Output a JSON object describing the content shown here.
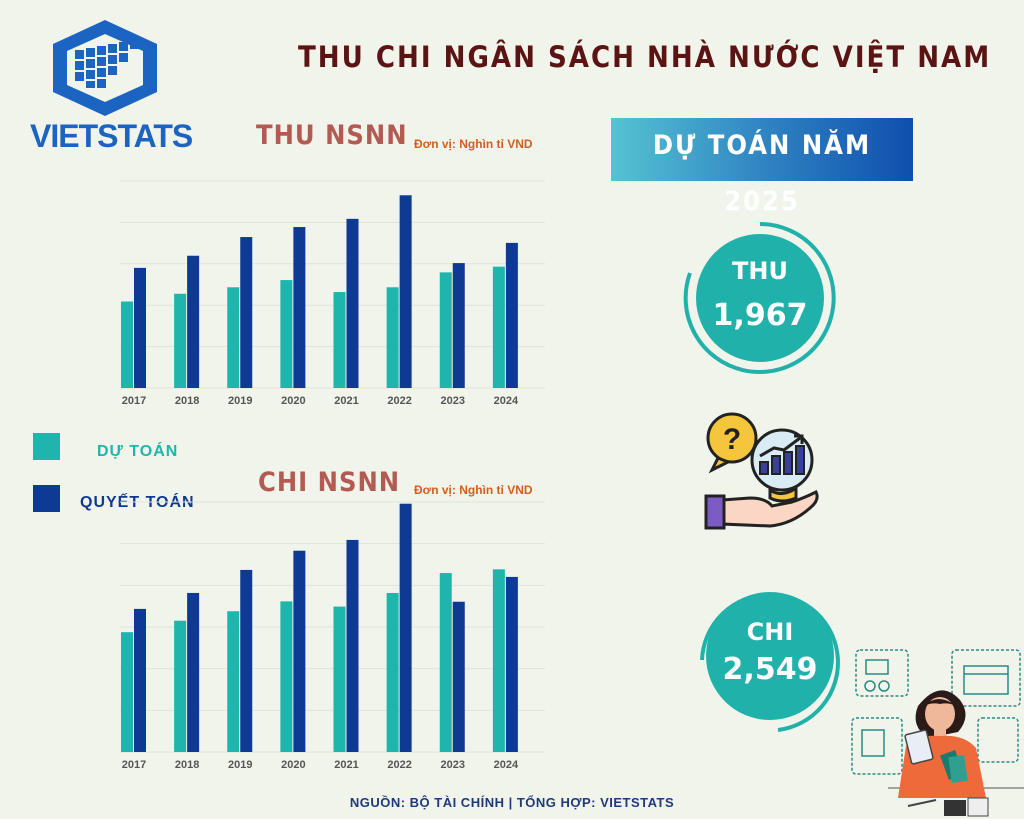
{
  "title": "THU CHI NGÂN SÁCH NHÀ NƯỚC VIỆT NAM",
  "logo_text": "VIETSTATS",
  "legend": {
    "estimate_label": "DỰ TOÁN",
    "final_label": "QUYẾT TOÁN"
  },
  "banner": "DỰ TOÁN NĂM 2025",
  "forecast": {
    "revenue_label": "THU",
    "revenue_value": "1,967",
    "expenditure_label": "CHI",
    "expenditure_value": "2,549"
  },
  "source": "NGUỒN: BỘ TÀI CHÍNH | TỔNG HỢP: VIETSTATS",
  "colors": {
    "estimate": "#1fb5ad",
    "final": "#0e3a94",
    "title": "#5a1414",
    "chart_title": "#b35b52",
    "unit": "#d35f1a",
    "circle": "#20b2aa"
  },
  "icons": [
    "question-hand-chart-icon",
    "woman-calculating-icon"
  ],
  "chart_data": [
    {
      "type": "bar",
      "title": "THU NSNN",
      "unit_label": "Đơn vị: Nghìn tỉ VND",
      "categories": [
        "2017",
        "2018",
        "2019",
        "2020",
        "2021",
        "2022",
        "2023",
        "2024"
      ],
      "series": [
        {
          "name": "DỰ TOÁN",
          "values": [
            1212,
            1320,
            1411,
            1512,
            1344,
            1411,
            1620,
            1700
          ]
        },
        {
          "name": "QUYẾT TOÁN",
          "values": [
            1683,
            1853,
            2115,
            2255,
            2370,
            2700,
            1750,
            2033
          ]
        }
      ],
      "ylim": [
        0,
        2900
      ],
      "grid": true
    },
    {
      "type": "bar",
      "title": "CHI NSNN",
      "unit_label": "Đơn vị: Nghìn tỉ VND",
      "categories": [
        "2017",
        "2018",
        "2019",
        "2020",
        "2021",
        "2022",
        "2023",
        "2024"
      ],
      "series": [
        {
          "name": "DỰ TOÁN",
          "values": [
            1390,
            1523,
            1633,
            1747,
            1687,
            1845,
            2076,
            2119
          ]
        },
        {
          "name": "QUYẾT TOÁN",
          "values": [
            1660,
            1845,
            2112,
            2335,
            2460,
            2880,
            1743,
            2031
          ]
        }
      ],
      "ylim": [
        0,
        2900
      ],
      "grid": true
    }
  ]
}
